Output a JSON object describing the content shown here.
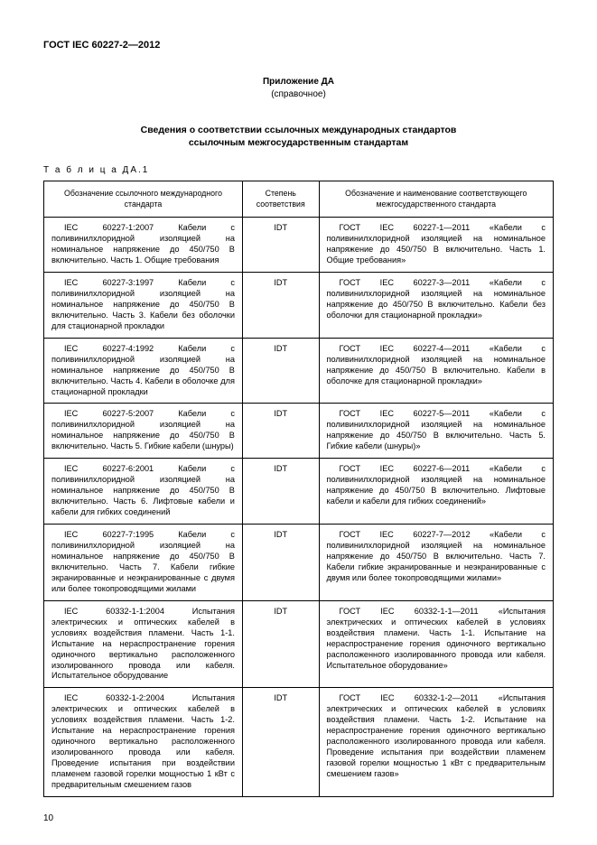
{
  "doc_header": "ГОСТ IEC 60227-2—2012",
  "annex_title": "Приложение ДА",
  "annex_sub": "(справочное)",
  "main_title_line1": "Сведения о соответствии ссылочных международных стандартов",
  "main_title_line2": "ссылочным межгосударственным стандартам",
  "table_label": "Т а б л и ц а   ДА.1",
  "headers": {
    "c1": "Обозначение ссылочного международного стандарта",
    "c2": "Степень соответствия",
    "c3": "Обозначение и наименование соответствующего межгосударственного стандарта"
  },
  "rows": [
    {
      "c1": "IEC 60227-1:2007 Кабели с поливинилхлоридной изоляцией на номинальное напряжение до 450/750 В включительно. Часть 1. Общие требования",
      "c2": "IDT",
      "c3": "ГОСТ IEC 60227-1—2011 «Кабели с поливинилхлоридной изоляцией на номинальное напряжение до 450/750 В включительно. Часть 1. Общие требования»"
    },
    {
      "c1": "IEC 60227-3:1997 Кабели с поливинилхлоридной изоляцией на номинальное напряжение до 450/750 В включительно. Часть 3. Кабели без оболочки для стационарной прокладки",
      "c2": "IDT",
      "c3": "ГОСТ IEC 60227-3—2011 «Кабели с поливинилхлоридной изоляцией на номинальное напряжение до 450/750 В включительно. Кабели без оболочки для стационарной прокладки»"
    },
    {
      "c1": "IEC 60227-4:1992 Кабели с поливинилхлоридной изоляцией на номинальное напряжение до 450/750 В включительно. Часть 4. Кабели в оболочке для стационарной прокладки",
      "c2": "IDT",
      "c3": "ГОСТ IEC 60227-4—2011 «Кабели с поливинилхлоридной изоляцией на номинальное напряжение до 450/750 В включительно. Кабели в оболочке для стационарной прокладки»"
    },
    {
      "c1": "IEC 60227-5:2007 Кабели с поливинилхлоридной изоляцией на номинальное напряжение до 450/750 В включительно. Часть 5. Гибкие кабели (шнуры)",
      "c2": "IDT",
      "c3": "ГОСТ IEC 60227-5—2011 «Кабели с поливинилхлоридной изоляцией на номинальное напряжение до 450/750 В включительно. Часть 5. Гибкие кабели (шнуры)»"
    },
    {
      "c1": "IEC 60227-6:2001 Кабели с поливинилхлоридной изоляцией на номинальное напряжение до 450/750 В включительно. Часть 6. Лифтовые кабели и кабели для гибких соединений",
      "c2": "IDT",
      "c3": "ГОСТ IEC 60227-6—2011 «Кабели с поливинилхлоридной изоляцией на номинальное напряжение до 450/750 В включительно. Лифтовые кабели и кабели для гибких соединений»"
    },
    {
      "c1": "IEC 60227-7:1995 Кабели с поливинилхлоридной изоляцией на номинальное напряжение до 450/750 В включительно. Часть 7. Кабели гибкие экранированные и неэкранированные с двумя или более токопроводящими жилами",
      "c2": "IDT",
      "c3": "ГОСТ IEC 60227-7—2012 «Кабели с поливинилхлоридной изоляцией на номинальное напряжение до 450/750 В включительно. Часть 7. Кабели гибкие экранированные и неэкранированные с двумя или более токопроводящими жилами»"
    },
    {
      "c1": "IEC 60332-1-1:2004 Испытания электрических и оптических кабелей в условиях воздействия пламени. Часть 1-1. Испытание на нераспространение горения одиночного вертикально расположенного изолированного провода или кабеля. Испытательное оборудование",
      "c2": "IDT",
      "c3": "ГОСТ IEC 60332-1-1—2011 «Испытания электрических и оптических кабелей в условиях воздействия пламени. Часть 1-1. Испытание на нераспространение горения одиночного вертикально расположенного изолированного провода или кабеля. Испытательное оборудование»"
    },
    {
      "c1": "IEC 60332-1-2:2004 Испытания электрических и оптических кабелей в условиях воздействия пламени. Часть 1-2. Испытание на нераспространение горения одиночного вертикально расположенного изолированного провода или кабеля. Проведение испытания при воздействии пламенем газовой горелки мощностью 1 кВт с предварительным смешением газов",
      "c2": "IDT",
      "c3": "ГОСТ IEC 60332-1-2—2011 «Испытания электрических и оптических кабелей в условиях воздействия пламени. Часть 1-2. Испытание на нераспространение горения одиночного вертикально расположенного изолированного провода или кабеля. Проведение испытания при воздействии пламенем газовой горелки мощностью 1 кВт с предварительным смешением газов»"
    }
  ],
  "page_num": "10"
}
